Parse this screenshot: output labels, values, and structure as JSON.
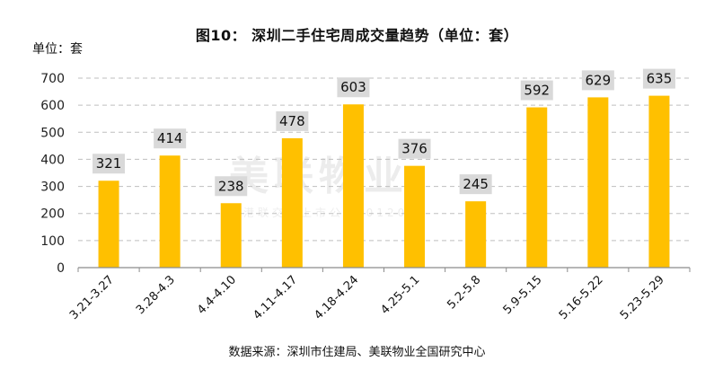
{
  "title": "图10： 深圳二手住宅周成交量趋势（单位：套）",
  "unit_label": "单位：套",
  "source": "数据来源：深圳市住建局、美联物业全国研究中心",
  "watermark": {
    "main": "美联物业",
    "sub": "香港联交所上市公司(01200)"
  },
  "colors": {
    "bar": "#FFC000",
    "label_bg": "#D9D9D9",
    "grid": "#BFBFBF",
    "axis": "#8C8C8C"
  },
  "chart_data": {
    "type": "bar",
    "title": "图10： 深圳二手住宅周成交量趋势（单位：套）",
    "ylabel": "单位：套",
    "xlabel": "",
    "ylim": [
      0,
      700
    ],
    "yticks": [
      0,
      100,
      200,
      300,
      400,
      500,
      600,
      700
    ],
    "grid": true,
    "categories": [
      "3.21-3.27",
      "3.28-4.3",
      "4.4-4.10",
      "4.11-4.17",
      "4.18-4.24",
      "4.25-5.1",
      "5.2-5.8",
      "5.9-5.15",
      "5.16-5.22",
      "5.23-5.29"
    ],
    "values": [
      321,
      414,
      238,
      478,
      603,
      376,
      245,
      592,
      629,
      635
    ]
  }
}
